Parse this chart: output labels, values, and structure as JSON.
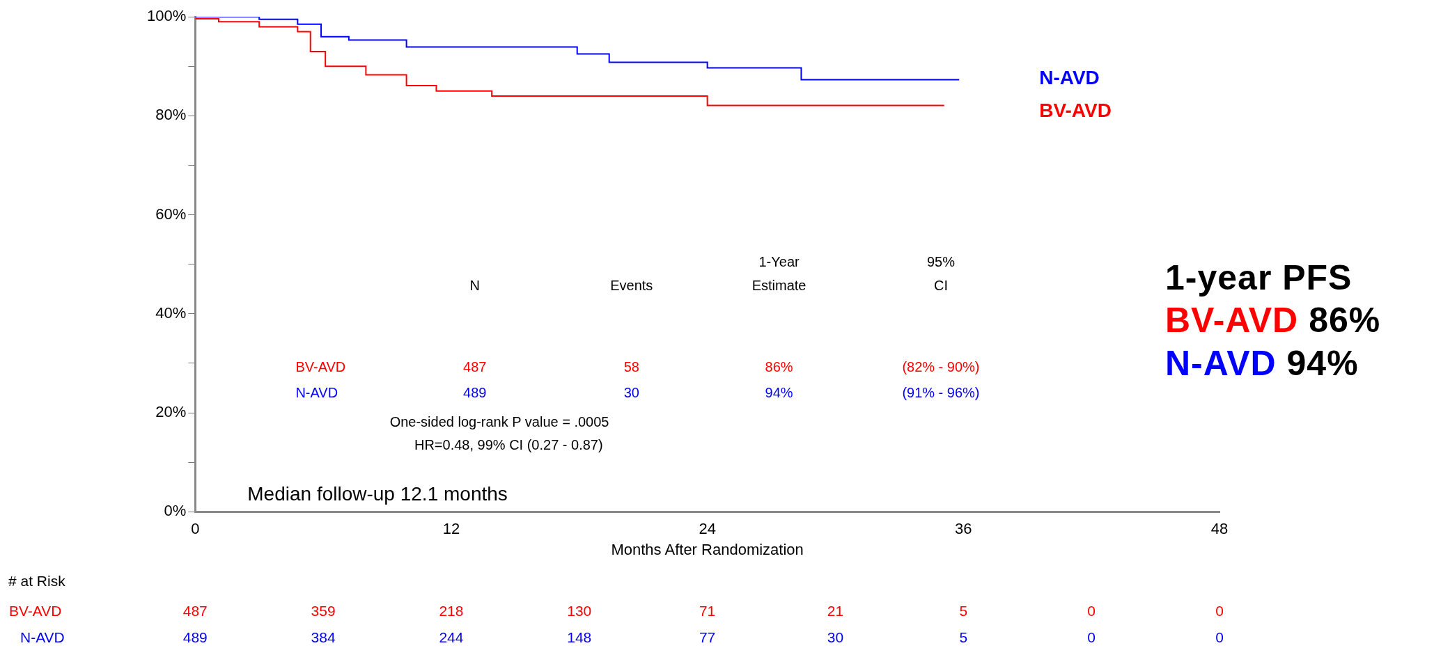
{
  "chart_data": {
    "type": "step",
    "xlabel": "Months After Randomization",
    "xlim": [
      0,
      48
    ],
    "xticks": [
      0,
      12,
      24,
      36,
      48
    ],
    "ylim": [
      0,
      100
    ],
    "yticks": [
      {
        "value": 0,
        "label": "0%"
      },
      {
        "value": 10,
        "label": null
      },
      {
        "value": 20,
        "label": "20%"
      },
      {
        "value": 30,
        "label": null
      },
      {
        "value": 40,
        "label": "40%"
      },
      {
        "value": 50,
        "label": null
      },
      {
        "value": 60,
        "label": "60%"
      },
      {
        "value": 70,
        "label": null
      },
      {
        "value": 80,
        "label": "80%"
      },
      {
        "value": 90,
        "label": null
      },
      {
        "value": 100,
        "label": "100%"
      }
    ],
    "grid": false,
    "legend": false,
    "marker": "none",
    "line_style": "solid",
    "series": [
      {
        "name": "BV-AVD",
        "color": "#ff0000",
        "x": [
          0,
          1.1,
          3,
          4.8,
          5.4,
          6.1,
          8,
          9.9,
          11.3,
          13.9,
          24,
          35.1
        ],
        "values": [
          99.6,
          99,
          98,
          97,
          93,
          90,
          88.3,
          86.1,
          85,
          84,
          82.1,
          82.1
        ]
      },
      {
        "name": "N-AVD",
        "color": "#0000ff",
        "x": [
          0,
          3,
          4.8,
          5.9,
          7.2,
          9.9,
          17.9,
          19.4,
          24,
          28.4,
          35.8
        ],
        "values": [
          100,
          99.5,
          98.5,
          96,
          95.3,
          93.9,
          92.5,
          90.8,
          89.7,
          87.3,
          87.3
        ]
      }
    ],
    "annotations": [
      "\tN\tEvents\t1-Year Estimate\t95% CI",
      "BV-AVD\t487\t58\t86%\t(82% - 90%)",
      "N-AVD\t489\t30\t94%\t(91% - 96%)",
      "One-sided log-rank P value = .0005",
      "HR=0.48, 99% CI (0.27 - 0.87)",
      "Median follow-up 12.1 months",
      "1-year PFS",
      "BV-AVD 86%",
      "N-AVD 94%",
      "# at Risk",
      "BV-AVD\t487\t359\t218\t130\t71\t21\t5\t0\t0",
      "N-AVD\t489\t384\t244\t148\t77\t30\t5\t0\t0"
    ]
  }
}
